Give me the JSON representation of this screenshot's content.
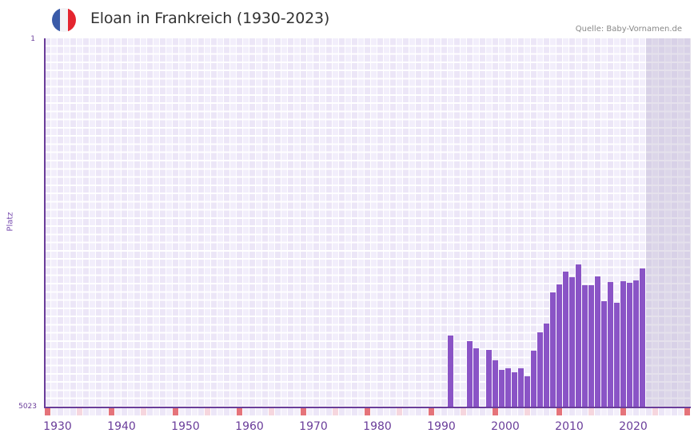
{
  "header": {
    "title": "Eloan in Frankreich (1930-2023)",
    "source": "Quelle: Baby-Vornamen.de",
    "flag": {
      "icon": "france-flag-icon",
      "colors": [
        "#3a5ba8",
        "#f3f3f6",
        "#e4252f"
      ]
    }
  },
  "colors": {
    "bar": "#8a54c6",
    "axis": "#6a3d9a",
    "cell_a": "#f2eefb",
    "cell_b": "#ece6f7",
    "future_shade": "#e3dfec",
    "decade_marker": "#e5737a",
    "mid_marker": "#f6d6de"
  },
  "chart_data": {
    "type": "bar",
    "title": "Eloan in Frankreich (1930-2023)",
    "xlabel": "",
    "ylabel": "Platz",
    "y_inverted": true,
    "ylim": [
      5023,
      1
    ],
    "y_ticks": [
      "1",
      "5023"
    ],
    "x_ticks": [
      "1930",
      "1940",
      "1950",
      "1960",
      "1970",
      "1980",
      "1990",
      "2000",
      "2010",
      "2020"
    ],
    "x_range": [
      1929,
      2029
    ],
    "grid": true,
    "legend": null,
    "categories": [
      1992,
      1995,
      1996,
      1998,
      1999,
      2000,
      2001,
      2002,
      2003,
      2004,
      2005,
      2006,
      2007,
      2008,
      2009,
      2010,
      2011,
      2012,
      2013,
      2014,
      2015,
      2016,
      2017,
      2018,
      2019,
      2020,
      2021,
      2022
    ],
    "values": [
      4044,
      4120,
      4218,
      4240,
      4381,
      4511,
      4490,
      4544,
      4490,
      4599,
      4251,
      4001,
      3881,
      3457,
      3349,
      3175,
      3251,
      3077,
      3360,
      3360,
      3240,
      3577,
      3316,
      3599,
      3305,
      3327,
      3295,
      3131
    ]
  }
}
